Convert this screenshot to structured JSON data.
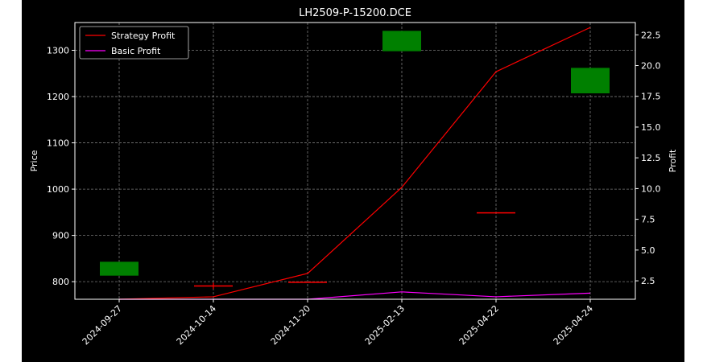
{
  "chart_data": {
    "type": "candlestick+line",
    "title": "LH2509-P-15200.DCE",
    "ylabel_left": "Price",
    "ylabel_right": "Profit",
    "categories": [
      "2024-09-27",
      "2024-10-14",
      "2024-11-20",
      "2025-02-13",
      "2025-04-22",
      "2025-04-24"
    ],
    "ylim_left": [
      762,
      1360
    ],
    "yticks_left": [
      800,
      900,
      1000,
      1100,
      1200,
      1300
    ],
    "ylim_right": [
      1.0,
      23.5
    ],
    "yticks_right": [
      2.5,
      5.0,
      7.5,
      10.0,
      12.5,
      15.0,
      17.5,
      20.0,
      22.5
    ],
    "candles": [
      {
        "open": 813,
        "close": 843,
        "high": 843,
        "low": 813,
        "color": "#008000"
      },
      {
        "open": 792,
        "close": 790,
        "high": 798,
        "low": 784,
        "color": "#ff0000"
      },
      {
        "open": 800,
        "close": 800,
        "high": 800,
        "low": 800,
        "color": "#ff0000"
      },
      {
        "open": 1298,
        "close": 1342,
        "high": 1342,
        "low": 1298,
        "color": "#008000"
      },
      {
        "open": 950,
        "close": 950,
        "high": 950,
        "low": 950,
        "color": "#ff0000"
      },
      {
        "open": 1207,
        "close": 1262,
        "high": 1262,
        "low": 1207,
        "color": "#008000"
      }
    ],
    "series": [
      {
        "name": "Strategy Profit",
        "color": "#ff0000",
        "values": [
          1.0,
          1.2,
          3.1,
          10.1,
          19.5,
          23.1
        ]
      },
      {
        "name": "Basic Profit",
        "color": "#ff00ff",
        "values": [
          1.0,
          1.0,
          1.0,
          1.6,
          1.2,
          1.5
        ]
      }
    ],
    "grid": true,
    "legend": "top-left"
  }
}
